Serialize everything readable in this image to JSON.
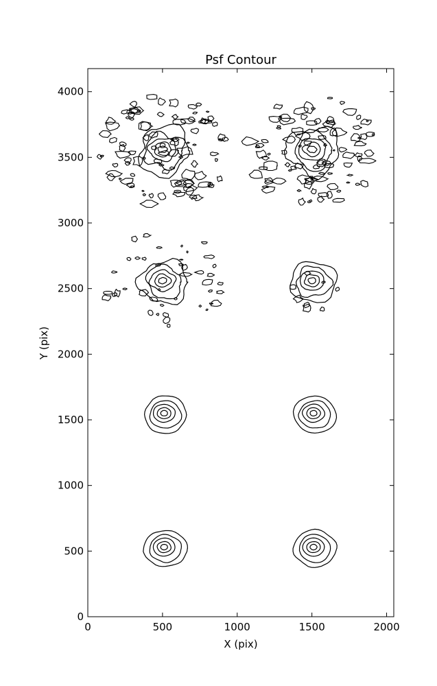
{
  "chart_data": {
    "type": "contour",
    "title": "Psf Contour",
    "xlabel": "X (pix)",
    "ylabel": "Y (pix)",
    "xlim": [
      0,
      2048
    ],
    "ylim": [
      0,
      4176
    ],
    "xticks": [
      0,
      500,
      1000,
      1500,
      2000
    ],
    "yticks": [
      0,
      500,
      1000,
      1500,
      2000,
      2500,
      3000,
      3500,
      4000
    ],
    "grid": false,
    "line_color": "#000000",
    "psf_centers": [
      {
        "x": 510,
        "y": 3550,
        "levels": 5,
        "noise": "high"
      },
      {
        "x": 1510,
        "y": 3550,
        "levels": 5,
        "noise": "high"
      },
      {
        "x": 510,
        "y": 2550,
        "levels": 5,
        "noise": "medium"
      },
      {
        "x": 1510,
        "y": 2550,
        "levels": 5,
        "noise": "low"
      },
      {
        "x": 520,
        "y": 1540,
        "levels": 5,
        "noise": "none"
      },
      {
        "x": 1520,
        "y": 1540,
        "levels": 5,
        "noise": "none"
      },
      {
        "x": 520,
        "y": 520,
        "levels": 5,
        "noise": "none"
      },
      {
        "x": 1520,
        "y": 520,
        "levels": 5,
        "noise": "none"
      }
    ]
  }
}
